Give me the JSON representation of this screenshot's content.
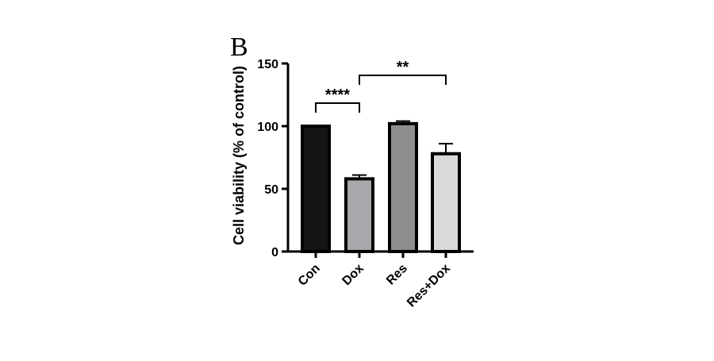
{
  "chart_data": {
    "type": "bar",
    "panel_label": "B",
    "ylabel": "Cell viability (% of control)",
    "xlabel": "",
    "ylim": [
      0,
      150
    ],
    "yticks": [
      0,
      50,
      100,
      150
    ],
    "categories": [
      "Con",
      "Dox",
      "Res",
      "Res+Dox"
    ],
    "values": [
      100,
      58,
      102,
      78
    ],
    "errors": [
      0,
      3,
      2,
      8
    ],
    "bar_colors": [
      "#141414",
      "#a9a9ad",
      "#8e8e8e",
      "#d9d9dc"
    ],
    "significance": [
      {
        "from": "Con",
        "to": "Dox",
        "label": "****"
      },
      {
        "from": "Dox",
        "to": "Res+Dox",
        "label": "**"
      }
    ]
  }
}
